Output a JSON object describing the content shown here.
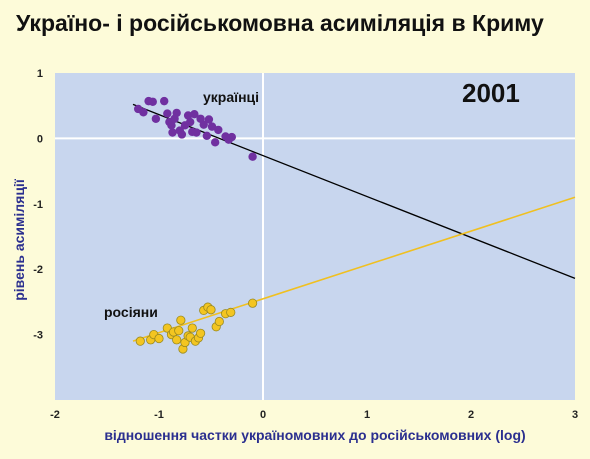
{
  "title": "Україно- і російськомовна асиміляція в Криму",
  "chart_data": {
    "type": "scatter",
    "title": "Україно- і російськомовна асиміляція в Криму",
    "xlabel": "відношення частки україномовних  до російськомовних (log)",
    "ylabel": "рівень асиміляції",
    "xlim": [
      -2,
      3
    ],
    "ylim": [
      -4,
      1
    ],
    "x_ticks": [
      "-2",
      "-1",
      "0",
      "1",
      "2",
      "3"
    ],
    "y_ticks": [
      "1",
      "0",
      "-1",
      "-2",
      "-3"
    ],
    "grid": false,
    "annotations": [
      {
        "text": "2001"
      },
      {
        "text": "українці"
      },
      {
        "text": "росіяни"
      }
    ],
    "colors": {
      "plot_bg": "#c8d6ee",
      "page_bg": "#fdfbd9",
      "ukrainians": "#7030a0",
      "russians": "#f3c521",
      "russians_edge": "#9a8a20",
      "ukr_line": "#000000",
      "rus_line": "#f0c020"
    },
    "series": [
      {
        "name": "українці",
        "points": [
          [
            -1.2,
            0.45
          ],
          [
            -1.15,
            0.4
          ],
          [
            -1.1,
            0.57
          ],
          [
            -1.06,
            0.56
          ],
          [
            -1.03,
            0.3
          ],
          [
            -0.95,
            0.57
          ],
          [
            -0.92,
            0.38
          ],
          [
            -0.9,
            0.25
          ],
          [
            -0.88,
            0.2
          ],
          [
            -0.87,
            0.09
          ],
          [
            -0.85,
            0.3
          ],
          [
            -0.83,
            0.39
          ],
          [
            -0.8,
            0.12
          ],
          [
            -0.78,
            0.06
          ],
          [
            -0.75,
            0.2
          ],
          [
            -0.72,
            0.35
          ],
          [
            -0.7,
            0.25
          ],
          [
            -0.68,
            0.1
          ],
          [
            -0.66,
            0.37
          ],
          [
            -0.64,
            0.09
          ],
          [
            -0.6,
            0.3
          ],
          [
            -0.57,
            0.21
          ],
          [
            -0.54,
            0.04
          ],
          [
            -0.52,
            0.29
          ],
          [
            -0.49,
            0.18
          ],
          [
            -0.46,
            -0.06
          ],
          [
            -0.43,
            0.13
          ],
          [
            -0.36,
            0.03
          ],
          [
            -0.33,
            -0.02
          ],
          [
            -0.3,
            0.02
          ],
          [
            -0.1,
            -0.28
          ]
        ],
        "fit": [
          [
            -1.25,
            0.52
          ],
          [
            3.0,
            -2.14
          ]
        ]
      },
      {
        "name": "росіяни",
        "points": [
          [
            -1.18,
            -3.1
          ],
          [
            -1.08,
            -3.08
          ],
          [
            -1.05,
            -3.0
          ],
          [
            -1.0,
            -3.06
          ],
          [
            -0.92,
            -2.9
          ],
          [
            -0.88,
            -3.0
          ],
          [
            -0.86,
            -2.96
          ],
          [
            -0.83,
            -3.08
          ],
          [
            -0.81,
            -2.94
          ],
          [
            -0.79,
            -2.78
          ],
          [
            -0.77,
            -3.22
          ],
          [
            -0.75,
            -3.12
          ],
          [
            -0.72,
            -3.02
          ],
          [
            -0.7,
            -3.04
          ],
          [
            -0.68,
            -2.9
          ],
          [
            -0.65,
            -3.1
          ],
          [
            -0.62,
            -3.05
          ],
          [
            -0.6,
            -2.98
          ],
          [
            -0.57,
            -2.63
          ],
          [
            -0.53,
            -2.58
          ],
          [
            -0.5,
            -2.62
          ],
          [
            -0.45,
            -2.88
          ],
          [
            -0.42,
            -2.8
          ],
          [
            -0.36,
            -2.68
          ],
          [
            -0.31,
            -2.66
          ],
          [
            -0.1,
            -2.52
          ]
        ],
        "fit": [
          [
            -1.25,
            -3.1
          ],
          [
            3.0,
            -0.9
          ]
        ]
      }
    ]
  }
}
